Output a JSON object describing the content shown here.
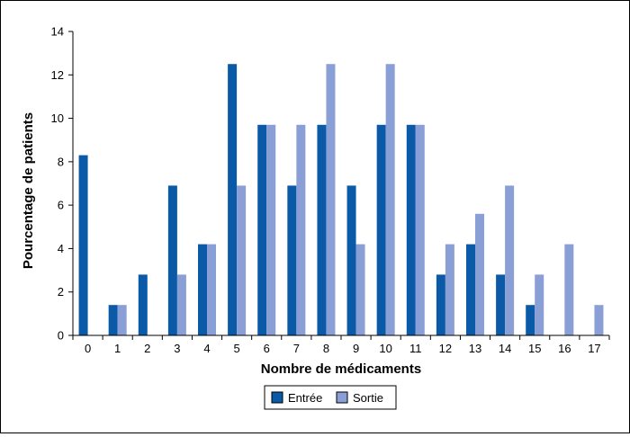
{
  "chart_data": {
    "type": "bar",
    "title": "",
    "xlabel": "Nombre de médicaments",
    "ylabel": "Pourcentage de patients",
    "ylim": [
      0,
      14
    ],
    "yticks": [
      0,
      2,
      4,
      6,
      8,
      10,
      12,
      14
    ],
    "grid": false,
    "legend_position": "bottom-center",
    "categories": [
      "0",
      "1",
      "2",
      "3",
      "4",
      "5",
      "6",
      "7",
      "8",
      "9",
      "10",
      "11",
      "12",
      "13",
      "14",
      "15",
      "16",
      "17"
    ],
    "series": [
      {
        "name": "Entrée",
        "color": "#0a5aa8",
        "values": [
          8.3,
          1.4,
          2.8,
          6.9,
          4.2,
          12.5,
          9.7,
          6.9,
          9.7,
          6.9,
          9.7,
          9.7,
          2.8,
          4.2,
          2.8,
          1.4,
          0,
          0
        ]
      },
      {
        "name": "Sortie",
        "color": "#8a9fd6",
        "values": [
          0,
          1.4,
          0,
          2.8,
          4.2,
          6.9,
          9.7,
          9.7,
          12.5,
          4.2,
          12.5,
          9.7,
          4.2,
          5.6,
          6.9,
          2.8,
          4.2,
          1.4
        ]
      }
    ]
  }
}
